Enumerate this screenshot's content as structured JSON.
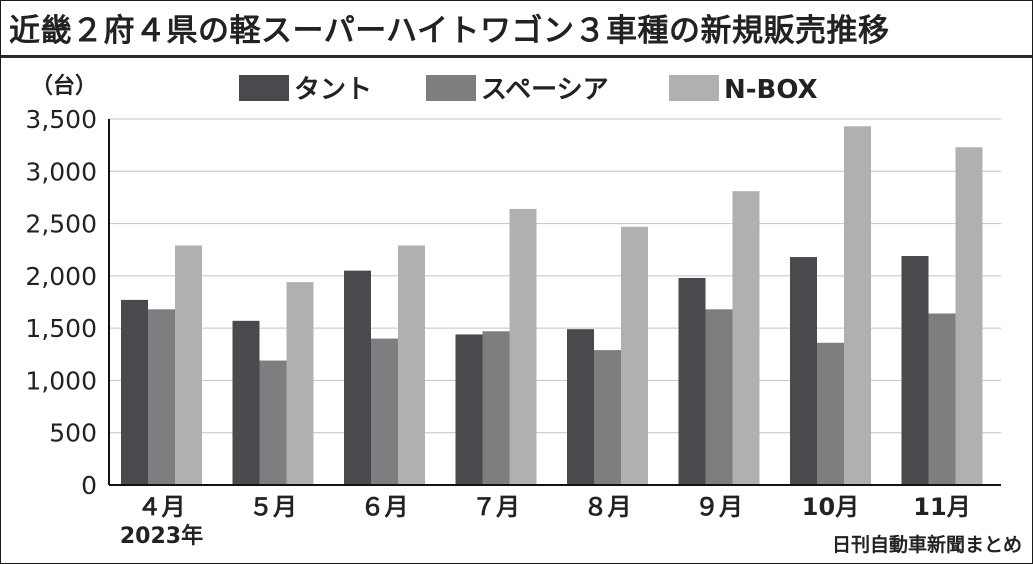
{
  "title": "近畿２府４県の軽スーパーハイトワゴン３車種の新規販売推移",
  "credit": "日刊自動車新聞まとめ",
  "chart_data": {
    "type": "bar",
    "ylabel": "（台）",
    "xlabel": "",
    "ylim": [
      0,
      3500
    ],
    "yticks": [
      0,
      500,
      1000,
      1500,
      2000,
      2500,
      3000,
      3500
    ],
    "ytick_labels": [
      "0",
      "500",
      "1,000",
      "1,500",
      "2,000",
      "2,500",
      "3,000",
      "3,500"
    ],
    "categories": [
      "４月",
      "５月",
      "６月",
      "７月",
      "８月",
      "９月",
      "10月",
      "11月"
    ],
    "category_sublabels": [
      "2023年",
      "",
      "",
      "",
      "",
      "",
      "",
      ""
    ],
    "grid": true,
    "legend_position": "top",
    "series": [
      {
        "name": "タント",
        "color": "#4a4a4e",
        "values": [
          1770,
          1570,
          2050,
          1440,
          1490,
          1980,
          2180,
          2190
        ]
      },
      {
        "name": "スペーシア",
        "color": "#7e7e80",
        "values": [
          1680,
          1190,
          1400,
          1470,
          1290,
          1680,
          1360,
          1640
        ]
      },
      {
        "name": "N-BOX",
        "color": "#b0b0b2",
        "values": [
          2290,
          1940,
          2290,
          2640,
          2470,
          2810,
          3430,
          3230
        ]
      }
    ]
  }
}
